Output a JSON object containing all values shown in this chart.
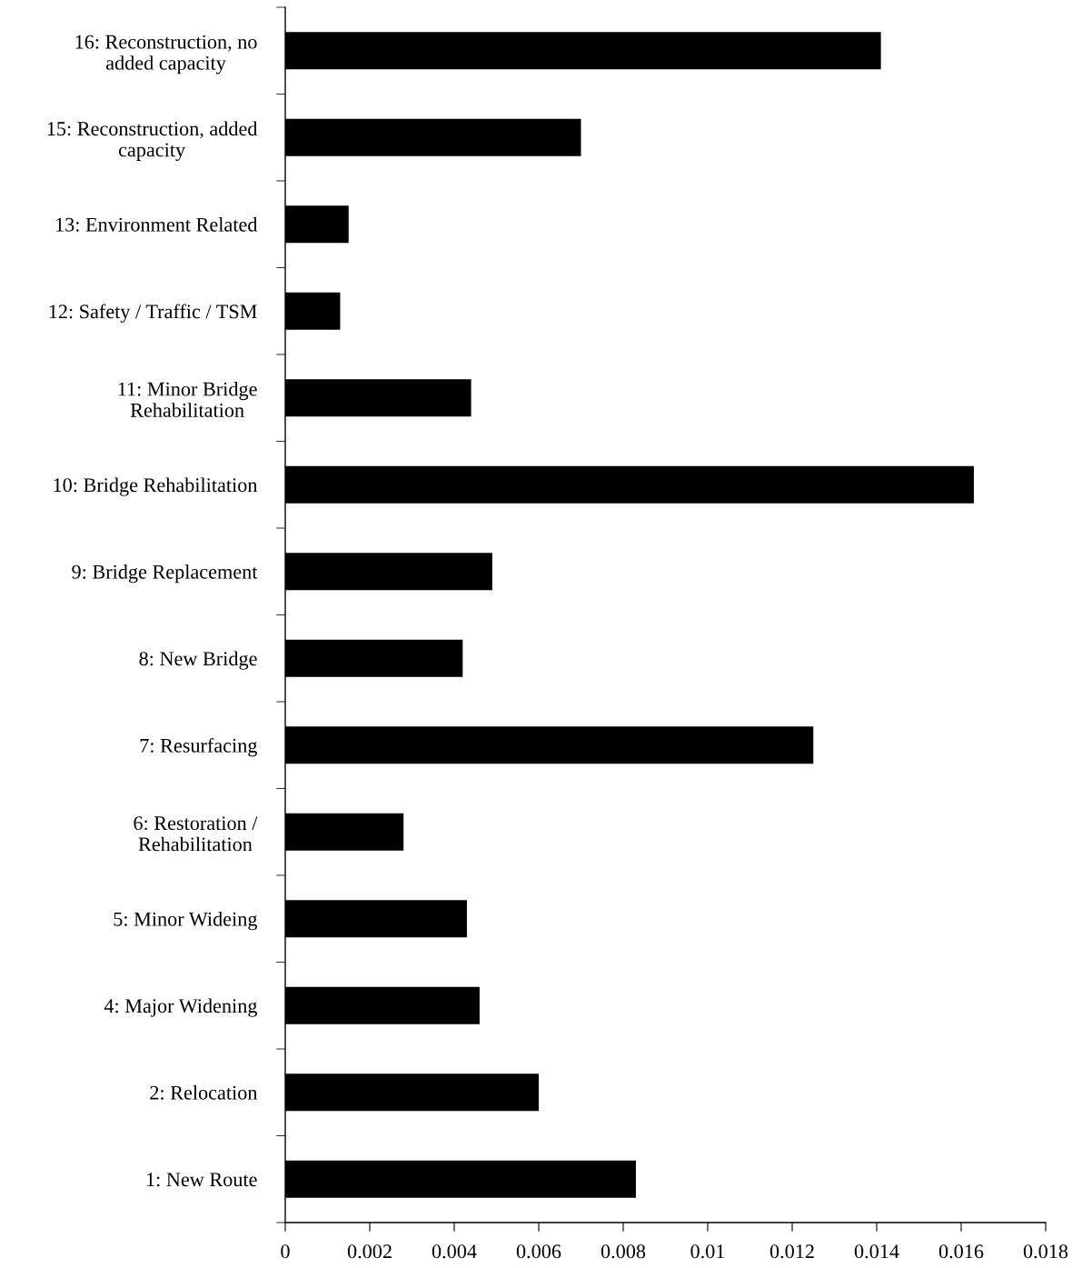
{
  "chart_data": {
    "type": "bar",
    "orientation": "horizontal",
    "categories": [
      "16: Reconstruction, no\nadded capacity",
      "15: Reconstruction, added\ncapacity",
      "13: Environment Related",
      "12: Safety / Traffic / TSM",
      "11: Minor Bridge\nRehabilitation",
      "10: Bridge Rehabilitation",
      "9: Bridge Replacement",
      "8: New Bridge",
      "7: Resurfacing",
      "6: Restoration /\nRehabilitation",
      "5: Minor Wideing",
      "4: Major Widening",
      "2: Relocation",
      "1: New Route"
    ],
    "values": [
      0.0141,
      0.007,
      0.0015,
      0.0013,
      0.0044,
      0.0163,
      0.0049,
      0.0042,
      0.0125,
      0.0028,
      0.0043,
      0.0046,
      0.006,
      0.0083
    ],
    "color": "#000000",
    "xlim": [
      0,
      0.018
    ],
    "xticks": [
      0,
      0.002,
      0.004,
      0.006,
      0.008,
      0.01,
      0.012,
      0.014,
      0.016,
      0.018
    ],
    "grid": false,
    "legend": false
  }
}
